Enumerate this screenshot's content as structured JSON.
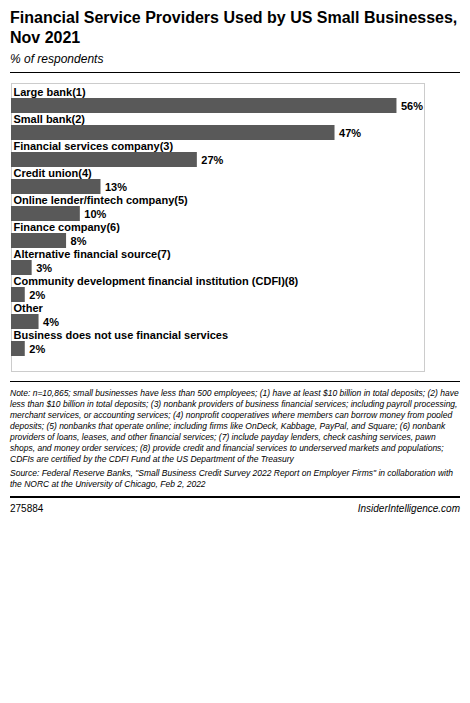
{
  "chart_data": {
    "type": "bar",
    "orientation": "horizontal",
    "title": "Financial Service Providers Used by US Small Businesses, Nov 2021",
    "subtitle": "% of respondents",
    "categories": [
      "Large bank(1)",
      "Small bank(2)",
      "Financial services company(3)",
      "Credit union(4)",
      "Online lender/fintech company(5)",
      "Finance company(6)",
      "Alternative financial source(7)",
      "Community development financial institution (CDFI)(8)",
      "Other",
      "Business does not use financial services"
    ],
    "values": [
      56,
      47,
      27,
      13,
      10,
      8,
      3,
      2,
      4,
      2
    ],
    "value_labels": [
      "56%",
      "47%",
      "27%",
      "13%",
      "10%",
      "8%",
      "3%",
      "2%",
      "4%",
      "2%"
    ],
    "color": "#595959",
    "xlim": [
      0,
      60
    ],
    "data_labels": true,
    "tick_labels": "y",
    "grid": false,
    "annotations": [
      "Note: n=10,865; small businesses have less than 500 employees; (1) have at least $10 billion in total deposits; (2) have less than $10 billion in total deposits; (3) nonbank providers of business financial services; including payroll processing, merchant services, or accounting services; (4) nonprofit cooperatives where members can borrow money from pooled deposits; (5) nonbanks that operate online; including firms like OnDeck, Kabbage, PayPal, and Square; (6) nonbank providers of loans, leases, and other financial services; (7) include payday lenders, check cashing services, pawn shops, and money order services; (8) provide credit and financial services to underserved markets and populations; CDFIs are certified by the CDFI Fund at the US Department of the Treasury",
      "Source: Federal Reserve Banks, \"Small Business Credit Survey 2022 Report on Employer Firms\" in collaboration with the NORC at the University of Chicago, Feb 2, 2022",
      "275884",
      "InsiderIntelligence.com"
    ]
  }
}
